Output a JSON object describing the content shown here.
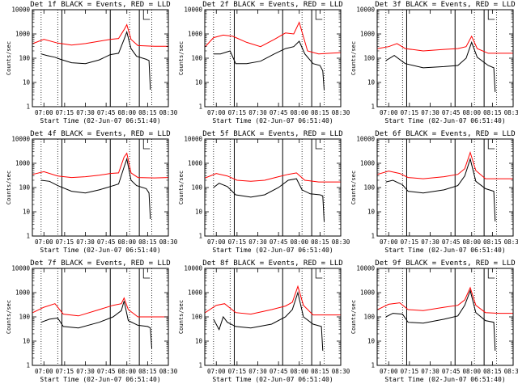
{
  "chart_data": {
    "type": "line",
    "layout": "3x3 grid of panels",
    "yscale": "log",
    "ylim": [
      1,
      10000
    ],
    "y_ticks": [
      "1",
      "10",
      "100",
      "1000",
      "10000"
    ],
    "ylabel": "Counts/sec",
    "x_ticks": [
      "07:00",
      "07:15",
      "07:30",
      "07:45",
      "08:00",
      "08:15",
      "08:30"
    ],
    "xlim": [
      "06:51:40",
      "08:30"
    ],
    "xlabel": "Start Time (02-Jun-07 06:51:40)",
    "colors": {
      "events": "#000000",
      "lld": "#ff0000"
    },
    "dotted_lines": [
      "06:58",
      "07:10",
      "08:02",
      "08:18"
    ],
    "solid_lines": [
      "07:13",
      "07:48",
      "08:09"
    ],
    "bracket_marker": "08:12",
    "panels": [
      {
        "title": "Det 1f BLACK = Events, RED = LLD",
        "series": [
          {
            "key": "lld",
            "x": [
              "06:52",
              "07:00",
              "07:10",
              "07:20",
              "07:30",
              "07:40",
              "07:48",
              "07:54",
              "07:58",
              "08:00",
              "08:03",
              "08:08",
              "08:20",
              "08:30"
            ],
            "values": [
              400,
              600,
              420,
              350,
              400,
              500,
              600,
              650,
              1500,
              2400,
              600,
              330,
              310,
              310
            ]
          },
          {
            "key": "events",
            "x": [
              "06:58",
              "07:02",
              "07:08",
              "07:12",
              "07:20",
              "07:30",
              "07:40",
              "07:48",
              "07:54",
              "07:58",
              "08:00",
              "08:03",
              "08:07",
              "08:14",
              "08:16",
              "08:17"
            ],
            "values": [
              150,
              130,
              110,
              90,
              65,
              60,
              85,
              140,
              160,
              600,
              1200,
              250,
              120,
              90,
              80,
              5
            ]
          }
        ]
      },
      {
        "title": "Det 2f BLACK = Events, RED = LLD",
        "series": [
          {
            "key": "lld",
            "x": [
              "06:52",
              "06:58",
              "07:05",
              "07:12",
              "07:22",
              "07:32",
              "07:42",
              "07:50",
              "07:56",
              "08:00",
              "08:06",
              "08:14",
              "08:22",
              "08:30"
            ],
            "values": [
              300,
              700,
              900,
              800,
              450,
              300,
              600,
              1100,
              1000,
              3000,
              200,
              150,
              160,
              170
            ]
          },
          {
            "key": "events",
            "x": [
              "06:58",
              "07:03",
              "07:10",
              "07:14",
              "07:22",
              "07:32",
              "07:42",
              "07:50",
              "07:56",
              "08:00",
              "08:04",
              "08:10",
              "08:15",
              "08:17",
              "08:18"
            ],
            "values": [
              150,
              150,
              200,
              60,
              60,
              75,
              150,
              250,
              300,
              500,
              150,
              60,
              50,
              30,
              5
            ]
          }
        ]
      },
      {
        "title": "Det 3f BLACK = Events, RED = LLD",
        "series": [
          {
            "key": "lld",
            "x": [
              "06:52",
              "07:00",
              "07:06",
              "07:12",
              "07:25",
              "07:40",
              "07:50",
              "07:56",
              "08:00",
              "08:04",
              "08:12",
              "08:20",
              "08:30"
            ],
            "values": [
              250,
              300,
              400,
              250,
              200,
              230,
              250,
              300,
              800,
              250,
              160,
              160,
              160
            ]
          },
          {
            "key": "events",
            "x": [
              "06:58",
              "07:04",
              "07:12",
              "07:25",
              "07:40",
              "07:50",
              "07:56",
              "08:00",
              "08:04",
              "08:12",
              "08:16",
              "08:17"
            ],
            "values": [
              80,
              130,
              60,
              40,
              45,
              50,
              100,
              450,
              110,
              50,
              40,
              4
            ]
          }
        ]
      },
      {
        "title": "Det 4f BLACK = Events, RED = LLD",
        "series": [
          {
            "key": "lld",
            "x": [
              "06:52",
              "07:00",
              "07:10",
              "07:20",
              "07:30",
              "07:40",
              "07:48",
              "07:54",
              "07:58",
              "08:00",
              "08:03",
              "08:08",
              "08:20",
              "08:30"
            ],
            "values": [
              350,
              450,
              300,
              260,
              280,
              320,
              380,
              400,
              1800,
              2600,
              400,
              260,
              250,
              260
            ]
          },
          {
            "key": "events",
            "x": [
              "06:58",
              "07:04",
              "07:10",
              "07:20",
              "07:30",
              "07:40",
              "07:48",
              "07:54",
              "07:58",
              "08:00",
              "08:03",
              "08:07",
              "08:14",
              "08:16",
              "08:17"
            ],
            "values": [
              200,
              180,
              120,
              70,
              60,
              80,
              110,
              140,
              700,
              1500,
              200,
              120,
              90,
              60,
              5
            ]
          }
        ]
      },
      {
        "title": "Det 5f BLACK = Events, RED = LLD",
        "series": [
          {
            "key": "lld",
            "x": [
              "06:52",
              "07:00",
              "07:08",
              "07:15",
              "07:25",
              "07:35",
              "07:45",
              "07:52",
              "07:58",
              "08:04",
              "08:14",
              "08:22",
              "08:30"
            ],
            "values": [
              250,
              380,
              300,
              200,
              180,
              200,
              280,
              350,
              400,
              200,
              170,
              170,
              170
            ]
          },
          {
            "key": "events",
            "x": [
              "06:58",
              "07:02",
              "07:08",
              "07:14",
              "07:25",
              "07:35",
              "07:45",
              "07:52",
              "07:58",
              "08:02",
              "08:08",
              "08:15",
              "08:17",
              "08:18"
            ],
            "values": [
              100,
              150,
              110,
              50,
              40,
              50,
              100,
              200,
              230,
              80,
              55,
              50,
              45,
              4
            ]
          }
        ]
      },
      {
        "title": "Det 6f BLACK = Events, RED = LLD",
        "series": [
          {
            "key": "lld",
            "x": [
              "06:52",
              "07:00",
              "07:08",
              "07:14",
              "07:25",
              "07:40",
              "07:50",
              "07:55",
              "07:59",
              "08:03",
              "08:10",
              "08:20",
              "08:30"
            ],
            "values": [
              350,
              480,
              380,
              260,
              230,
              280,
              350,
              600,
              2800,
              500,
              230,
              230,
              230
            ]
          },
          {
            "key": "events",
            "x": [
              "06:58",
              "07:03",
              "07:10",
              "07:14",
              "07:25",
              "07:40",
              "07:50",
              "07:55",
              "07:59",
              "08:03",
              "08:10",
              "08:16",
              "08:17"
            ],
            "values": [
              170,
              200,
              130,
              70,
              60,
              80,
              120,
              300,
              1500,
              180,
              90,
              70,
              4
            ]
          }
        ]
      },
      {
        "title": "Det 7f BLACK = Events, RED = LLD",
        "series": [
          {
            "key": "lld",
            "x": [
              "06:52",
              "07:00",
              "07:08",
              "07:14",
              "07:25",
              "07:40",
              "07:50",
              "07:56",
              "07:58",
              "08:01",
              "08:08",
              "08:20",
              "08:30"
            ],
            "values": [
              150,
              250,
              350,
              130,
              110,
              200,
              300,
              350,
              600,
              200,
              100,
              100,
              100
            ]
          },
          {
            "key": "events",
            "x": [
              "06:58",
              "07:04",
              "07:10",
              "07:14",
              "07:25",
              "07:40",
              "07:50",
              "07:56",
              "07:58",
              "08:01",
              "08:08",
              "08:15",
              "08:17",
              "08:18"
            ],
            "values": [
              60,
              80,
              90,
              40,
              35,
              60,
              100,
              180,
              450,
              70,
              45,
              40,
              35,
              5
            ]
          }
        ]
      },
      {
        "title": "Det 8f BLACK = Events, RED = LLD",
        "series": [
          {
            "key": "lld",
            "x": [
              "06:52",
              "07:00",
              "07:06",
              "07:14",
              "07:25",
              "07:40",
              "07:50",
              "07:55",
              "07:59",
              "08:03",
              "08:10",
              "08:20",
              "08:30"
            ],
            "values": [
              150,
              300,
              350,
              150,
              130,
              200,
              280,
              400,
              1800,
              300,
              120,
              120,
              120
            ]
          },
          {
            "key": "events",
            "x": [
              "06:58",
              "07:02",
              "07:05",
              "07:08",
              "07:14",
              "07:25",
              "07:40",
              "07:50",
              "07:55",
              "07:59",
              "08:03",
              "08:10",
              "08:16",
              "08:17"
            ],
            "values": [
              80,
              30,
              100,
              60,
              40,
              35,
              50,
              100,
              200,
              1000,
              100,
              50,
              40,
              4
            ]
          }
        ]
      },
      {
        "title": "Det 9f BLACK = Events, RED = LLD",
        "series": [
          {
            "key": "lld",
            "x": [
              "06:52",
              "07:00",
              "07:08",
              "07:14",
              "07:25",
              "07:40",
              "07:50",
              "07:55",
              "07:59",
              "08:03",
              "08:10",
              "08:20",
              "08:30"
            ],
            "values": [
              200,
              330,
              380,
              200,
              180,
              250,
              300,
              500,
              1600,
              300,
              150,
              140,
              140
            ]
          },
          {
            "key": "events",
            "x": [
              "06:58",
              "07:03",
              "07:10",
              "07:14",
              "07:25",
              "07:40",
              "07:50",
              "07:55",
              "07:59",
              "08:03",
              "08:10",
              "08:16",
              "08:17"
            ],
            "values": [
              100,
              140,
              130,
              60,
              55,
              80,
              110,
              300,
              1200,
              150,
              70,
              60,
              4
            ]
          }
        ]
      }
    ]
  }
}
